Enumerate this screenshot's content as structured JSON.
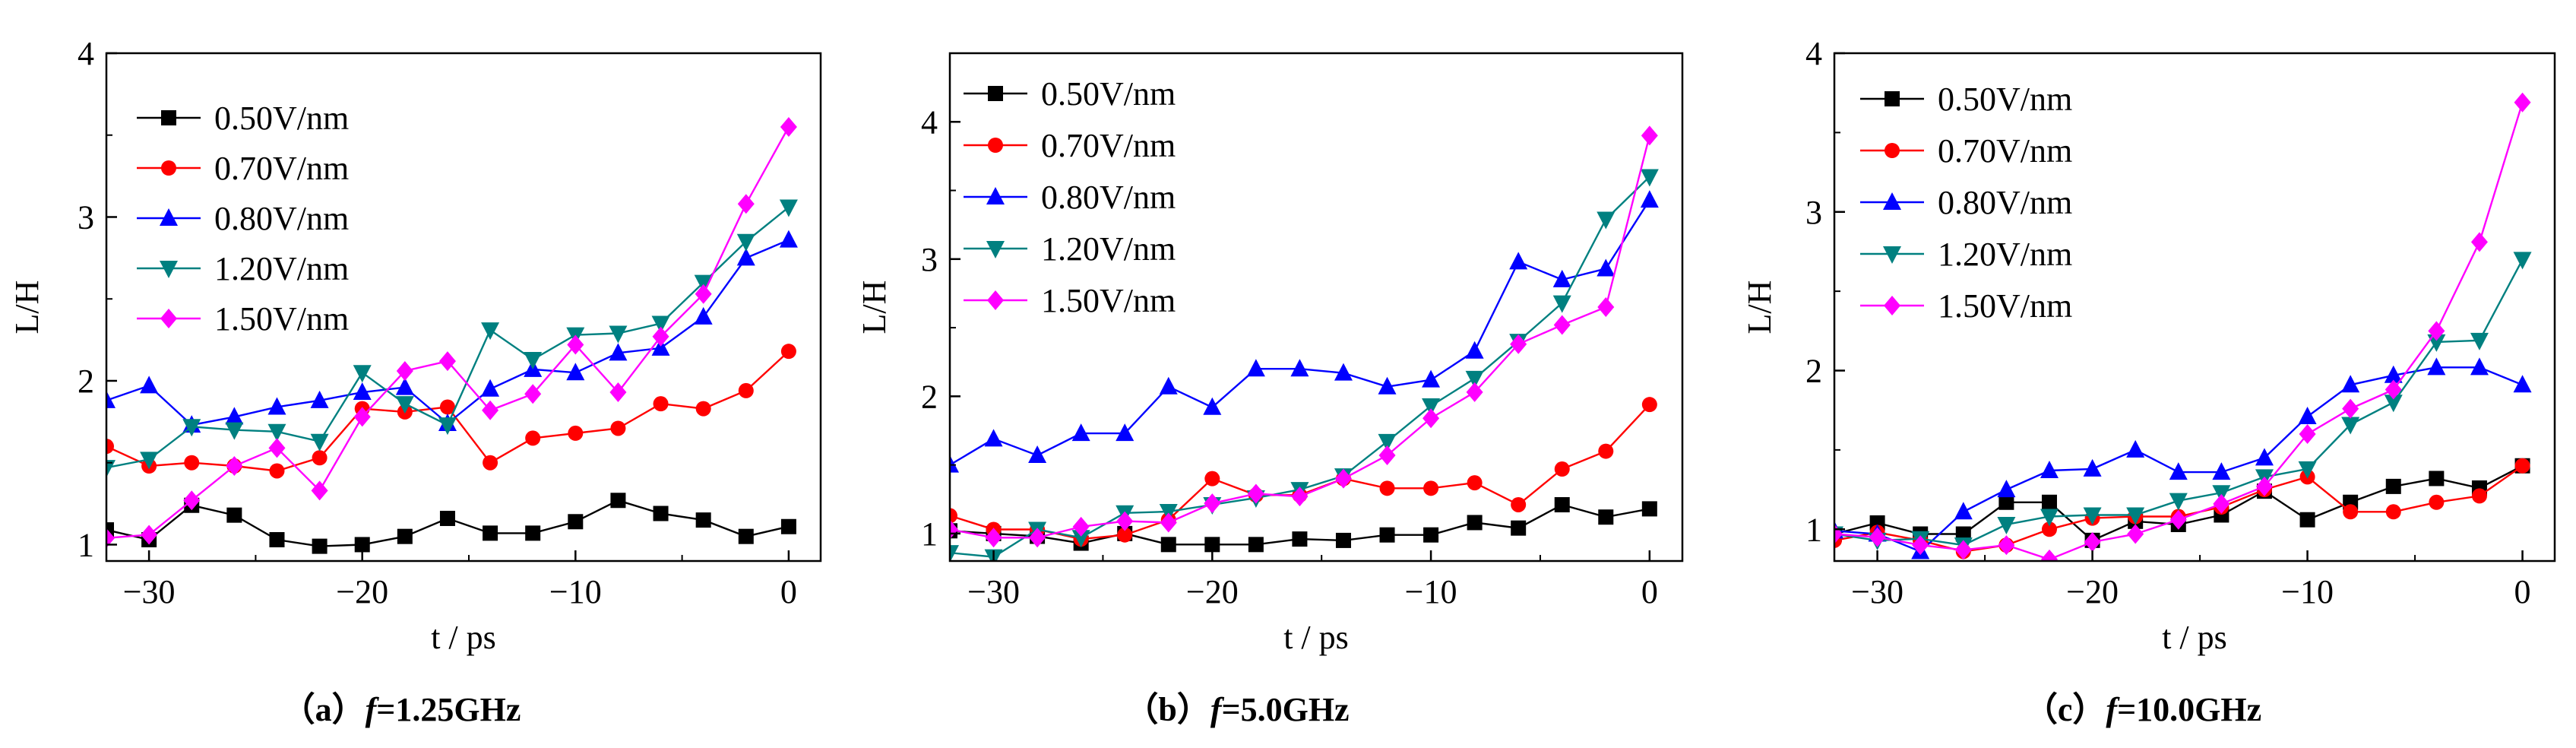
{
  "chart_data": [
    {
      "type": "line",
      "caption": {
        "prefix": "（a）",
        "variable": "f",
        "suffix": "=1.25GHz"
      },
      "xlabel": "t / ps",
      "ylabel": "L/H",
      "xlim": [
        -32,
        1.5
      ],
      "ylim": [
        0.9,
        4.0
      ],
      "xticks": [
        -30,
        -20,
        -10,
        0
      ],
      "yticks": [
        1,
        2,
        3,
        4
      ],
      "x": [
        -32,
        -30,
        -28,
        -26,
        -24,
        -22,
        -20,
        -18,
        -16,
        -14,
        -12,
        -10,
        -8,
        -6,
        -4,
        -2,
        0
      ],
      "series": [
        {
          "name": "0.50V/nm",
          "color": "#000000",
          "marker": "square",
          "values": [
            1.09,
            1.03,
            1.24,
            1.18,
            1.03,
            0.99,
            1.0,
            1.05,
            1.16,
            1.07,
            1.07,
            1.14,
            1.27,
            1.19,
            1.15,
            1.05,
            1.11
          ]
        },
        {
          "name": "0.70V/nm",
          "color": "#ff0000",
          "marker": "circle",
          "values": [
            1.6,
            1.48,
            1.5,
            1.48,
            1.45,
            1.53,
            1.83,
            1.81,
            1.84,
            1.5,
            1.65,
            1.68,
            1.71,
            1.86,
            1.83,
            1.94,
            2.18
          ]
        },
        {
          "name": "0.80V/nm",
          "color": "#0000ff",
          "marker": "triangle-up",
          "values": [
            1.88,
            1.97,
            1.73,
            1.78,
            1.84,
            1.88,
            1.93,
            1.96,
            1.74,
            1.95,
            2.07,
            2.05,
            2.17,
            2.2,
            2.39,
            2.75,
            2.86
          ]
        },
        {
          "name": "1.20V/nm",
          "color": "#008080",
          "marker": "triangle-down",
          "values": [
            1.47,
            1.52,
            1.72,
            1.7,
            1.69,
            1.63,
            2.05,
            1.86,
            1.73,
            2.31,
            2.13,
            2.28,
            2.29,
            2.35,
            2.6,
            2.85,
            3.06
          ]
        },
        {
          "name": "1.50V/nm",
          "color": "#ff00ff",
          "marker": "diamond",
          "values": [
            1.04,
            1.06,
            1.27,
            1.48,
            1.59,
            1.33,
            1.78,
            2.06,
            2.12,
            1.82,
            1.92,
            2.22,
            1.93,
            2.27,
            2.53,
            3.08,
            3.55
          ]
        }
      ]
    },
    {
      "type": "line",
      "caption": {
        "prefix": "（b）",
        "variable": "f",
        "suffix": "=5.0GHz"
      },
      "xlabel": "t / ps",
      "ylabel": "L/H",
      "xlim": [
        -32,
        1.5
      ],
      "ylim": [
        0.8,
        4.5
      ],
      "xticks": [
        -30,
        -20,
        -10,
        0
      ],
      "yticks": [
        1,
        2,
        3,
        4
      ],
      "x": [
        -32,
        -30,
        -28,
        -26,
        -24,
        -22,
        -20,
        -18,
        -16,
        -14,
        -12,
        -10,
        -8,
        -6,
        -4,
        -2,
        0
      ],
      "series": [
        {
          "name": "0.50V/nm",
          "color": "#000000",
          "marker": "square",
          "values": [
            1.02,
            1.0,
            0.98,
            0.93,
            1.0,
            0.92,
            0.92,
            0.92,
            0.96,
            0.95,
            0.99,
            0.99,
            1.08,
            1.04,
            1.21,
            1.12,
            1.18
          ]
        },
        {
          "name": "0.70V/nm",
          "color": "#ff0000",
          "marker": "circle",
          "values": [
            1.13,
            1.03,
            1.03,
            0.96,
            0.99,
            1.1,
            1.4,
            1.28,
            1.28,
            1.4,
            1.33,
            1.33,
            1.37,
            1.21,
            1.47,
            1.6,
            1.94
          ]
        },
        {
          "name": "0.80V/nm",
          "color": "#0000ff",
          "marker": "triangle-up",
          "values": [
            1.5,
            1.69,
            1.57,
            1.73,
            1.73,
            2.07,
            1.92,
            2.2,
            2.2,
            2.17,
            2.07,
            2.12,
            2.33,
            2.98,
            2.85,
            2.93,
            3.43
          ]
        },
        {
          "name": "1.20V/nm",
          "color": "#008080",
          "marker": "triangle-down",
          "values": [
            0.86,
            0.83,
            1.03,
            0.97,
            1.15,
            1.16,
            1.21,
            1.26,
            1.32,
            1.42,
            1.67,
            1.93,
            2.13,
            2.4,
            2.68,
            3.29,
            3.6
          ]
        },
        {
          "name": "1.50V/nm",
          "color": "#ff00ff",
          "marker": "diamond",
          "values": [
            1.03,
            0.97,
            0.97,
            1.05,
            1.09,
            1.08,
            1.22,
            1.29,
            1.27,
            1.4,
            1.57,
            1.84,
            2.03,
            2.38,
            2.52,
            2.65,
            3.9
          ]
        }
      ]
    },
    {
      "type": "line",
      "caption": {
        "prefix": "（c）",
        "variable": "f",
        "suffix": "=10.0GHz"
      },
      "xlabel": "t / ps",
      "ylabel": "L/H",
      "xlim": [
        -32,
        1.5
      ],
      "ylim": [
        0.8,
        4.0
      ],
      "xticks": [
        -30,
        -20,
        -10,
        0
      ],
      "yticks": [
        1,
        2,
        3,
        4
      ],
      "x": [
        -32,
        -30,
        -28,
        -26,
        -24,
        -22,
        -20,
        -18,
        -16,
        -14,
        -12,
        -10,
        -8,
        -6,
        -4,
        -2,
        0
      ],
      "series": [
        {
          "name": "0.50V/nm",
          "color": "#000000",
          "marker": "square",
          "values": [
            0.97,
            1.04,
            0.97,
            0.97,
            1.17,
            1.17,
            0.93,
            1.05,
            1.03,
            1.09,
            1.24,
            1.06,
            1.17,
            1.27,
            1.32,
            1.26,
            1.4
          ]
        },
        {
          "name": "0.70V/nm",
          "color": "#ff0000",
          "marker": "circle",
          "values": [
            0.93,
            0.98,
            0.93,
            0.86,
            0.9,
            1.0,
            1.07,
            1.08,
            1.08,
            1.14,
            1.25,
            1.33,
            1.11,
            1.11,
            1.17,
            1.21,
            1.4
          ]
        },
        {
          "name": "0.80V/nm",
          "color": "#0000ff",
          "marker": "triangle-up",
          "values": [
            0.99,
            0.97,
            0.86,
            1.11,
            1.25,
            1.37,
            1.38,
            1.5,
            1.36,
            1.36,
            1.45,
            1.71,
            1.91,
            1.97,
            2.02,
            2.02,
            1.91
          ]
        },
        {
          "name": "1.20V/nm",
          "color": "#008080",
          "marker": "triangle-down",
          "values": [
            0.97,
            0.93,
            0.94,
            0.9,
            1.03,
            1.08,
            1.09,
            1.09,
            1.18,
            1.23,
            1.33,
            1.38,
            1.66,
            1.8,
            2.18,
            2.19,
            2.7
          ]
        },
        {
          "name": "1.50V/nm",
          "color": "#ff00ff",
          "marker": "diamond",
          "values": [
            0.97,
            0.95,
            0.9,
            0.87,
            0.9,
            0.81,
            0.92,
            0.97,
            1.06,
            1.16,
            1.27,
            1.6,
            1.76,
            1.88,
            2.25,
            2.81,
            3.69
          ]
        }
      ]
    }
  ]
}
